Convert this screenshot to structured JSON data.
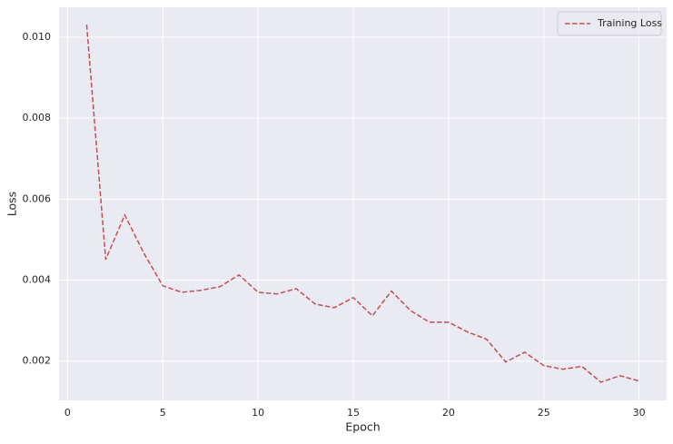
{
  "chart_data": {
    "type": "line",
    "x_label": "Epoch",
    "y_label": "Loss",
    "x": [
      1,
      2,
      3,
      4,
      5,
      6,
      7,
      8,
      9,
      10,
      11,
      12,
      13,
      14,
      15,
      16,
      17,
      18,
      19,
      20,
      21,
      22,
      23,
      24,
      25,
      26,
      27,
      28,
      29,
      30
    ],
    "series": [
      {
        "name": "Training Loss",
        "color": "#c44e52",
        "values": [
          0.01031,
          0.00451,
          0.00561,
          0.00467,
          0.00386,
          0.0037,
          0.00375,
          0.00384,
          0.00413,
          0.0037,
          0.00366,
          0.00379,
          0.00341,
          0.00332,
          0.00357,
          0.00312,
          0.00373,
          0.00325,
          0.00296,
          0.00296,
          0.00272,
          0.00254,
          0.00198,
          0.00222,
          0.00189,
          0.0018,
          0.00187,
          0.00148,
          0.00164,
          0.00151
        ]
      }
    ],
    "xlim": [
      -0.45,
      31.45
    ],
    "ylim": [
      0.00103,
      0.01074
    ],
    "xticks": [
      0,
      5,
      10,
      15,
      20,
      25,
      30
    ],
    "yticks": [
      0.002,
      0.004,
      0.006,
      0.008,
      {
        "value": 0.01,
        "label": "0.010"
      }
    ],
    "grid": true,
    "legend": "upper right"
  }
}
